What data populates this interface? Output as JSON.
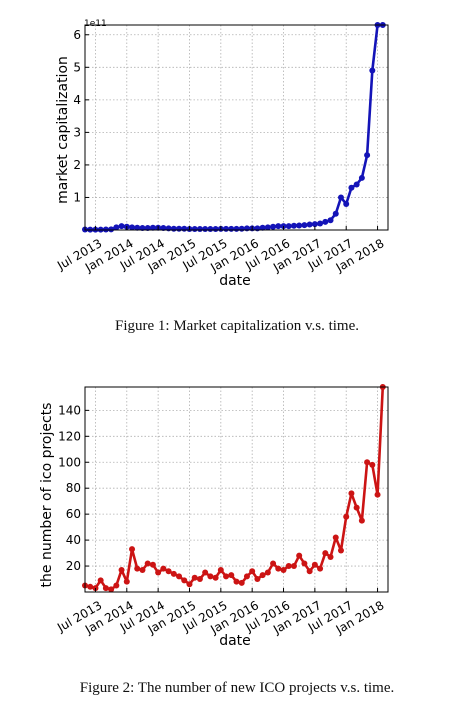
{
  "figures": [
    {
      "caption": "Figure 1: Market capitalization v.s. time.",
      "chart_data": {
        "type": "line",
        "xlabel": "date",
        "ylabel": "market capitalization",
        "scale_label": "1e11",
        "color": "#1414b8",
        "grid": true,
        "x_tick_labels": [
          "Jul 2013",
          "Jan 2014",
          "Jul 2014",
          "Jan 2015",
          "Jul 2015",
          "Jan 2016",
          "Jul 2016",
          "Jan 2017",
          "Jul 2017",
          "Jan 2018"
        ],
        "xlim": [
          "2013-05",
          "2018-03"
        ],
        "ylim": [
          0,
          6.3
        ],
        "y_ticks": [
          1,
          2,
          3,
          4,
          5,
          6
        ],
        "x": [
          "2013-05",
          "2013-06",
          "2013-07",
          "2013-08",
          "2013-09",
          "2013-10",
          "2013-11",
          "2013-12",
          "2014-01",
          "2014-02",
          "2014-03",
          "2014-04",
          "2014-05",
          "2014-06",
          "2014-07",
          "2014-08",
          "2014-09",
          "2014-10",
          "2014-11",
          "2014-12",
          "2015-01",
          "2015-02",
          "2015-03",
          "2015-04",
          "2015-05",
          "2015-06",
          "2015-07",
          "2015-08",
          "2015-09",
          "2015-10",
          "2015-11",
          "2015-12",
          "2016-01",
          "2016-02",
          "2016-03",
          "2016-04",
          "2016-05",
          "2016-06",
          "2016-07",
          "2016-08",
          "2016-09",
          "2016-10",
          "2016-11",
          "2016-12",
          "2017-01",
          "2017-02",
          "2017-03",
          "2017-04",
          "2017-05",
          "2017-06",
          "2017-07",
          "2017-08",
          "2017-09",
          "2017-10",
          "2017-11",
          "2017-12",
          "2018-01",
          "2018-02"
        ],
        "values": [
          0.015,
          0.012,
          0.01,
          0.012,
          0.015,
          0.02,
          0.08,
          0.12,
          0.1,
          0.08,
          0.07,
          0.06,
          0.06,
          0.07,
          0.07,
          0.06,
          0.05,
          0.04,
          0.04,
          0.04,
          0.03,
          0.03,
          0.03,
          0.03,
          0.03,
          0.03,
          0.035,
          0.035,
          0.035,
          0.035,
          0.04,
          0.05,
          0.05,
          0.05,
          0.07,
          0.08,
          0.1,
          0.12,
          0.12,
          0.12,
          0.13,
          0.14,
          0.15,
          0.17,
          0.18,
          0.2,
          0.25,
          0.3,
          0.5,
          1.0,
          0.8,
          1.3,
          1.4,
          1.6,
          2.3,
          4.9,
          6.3,
          6.3
        ]
      }
    },
    {
      "caption": "Figure 2: The number of new ICO projects v.s. time.",
      "chart_data": {
        "type": "line",
        "xlabel": "date",
        "ylabel": "the number of ico projects",
        "color": "#cc1414",
        "grid": true,
        "x_tick_labels": [
          "Jul 2013",
          "Jan 2014",
          "Jul 2014",
          "Jan 2015",
          "Jul 2015",
          "Jan 2016",
          "Jul 2016",
          "Jan 2017",
          "Jul 2017",
          "Jan 2018"
        ],
        "xlim": [
          "2013-05",
          "2018-03"
        ],
        "ylim": [
          0,
          158
        ],
        "y_ticks": [
          20,
          40,
          60,
          80,
          100,
          120,
          140
        ],
        "x": [
          "2013-05",
          "2013-06",
          "2013-07",
          "2013-08",
          "2013-09",
          "2013-10",
          "2013-11",
          "2013-12",
          "2014-01",
          "2014-02",
          "2014-03",
          "2014-04",
          "2014-05",
          "2014-06",
          "2014-07",
          "2014-08",
          "2014-09",
          "2014-10",
          "2014-11",
          "2014-12",
          "2015-01",
          "2015-02",
          "2015-03",
          "2015-04",
          "2015-05",
          "2015-06",
          "2015-07",
          "2015-08",
          "2015-09",
          "2015-10",
          "2015-11",
          "2015-12",
          "2016-01",
          "2016-02",
          "2016-03",
          "2016-04",
          "2016-05",
          "2016-06",
          "2016-07",
          "2016-08",
          "2016-09",
          "2016-10",
          "2016-11",
          "2016-12",
          "2017-01",
          "2017-02",
          "2017-03",
          "2017-04",
          "2017-05",
          "2017-06",
          "2017-07",
          "2017-08",
          "2017-09",
          "2017-10",
          "2017-11",
          "2017-12",
          "2018-01",
          "2018-02"
        ],
        "values": [
          5,
          4,
          3,
          9,
          3,
          2,
          5,
          17,
          8,
          33,
          18,
          17,
          22,
          21,
          15,
          18,
          16,
          14,
          12,
          9,
          6,
          11,
          10,
          15,
          12,
          11,
          17,
          12,
          13,
          8,
          7,
          12,
          16,
          10,
          13,
          15,
          22,
          18,
          17,
          20,
          20,
          28,
          22,
          16,
          21,
          18,
          30,
          27,
          42,
          32,
          58,
          76,
          65,
          55,
          100,
          98,
          75,
          158
        ]
      }
    }
  ]
}
